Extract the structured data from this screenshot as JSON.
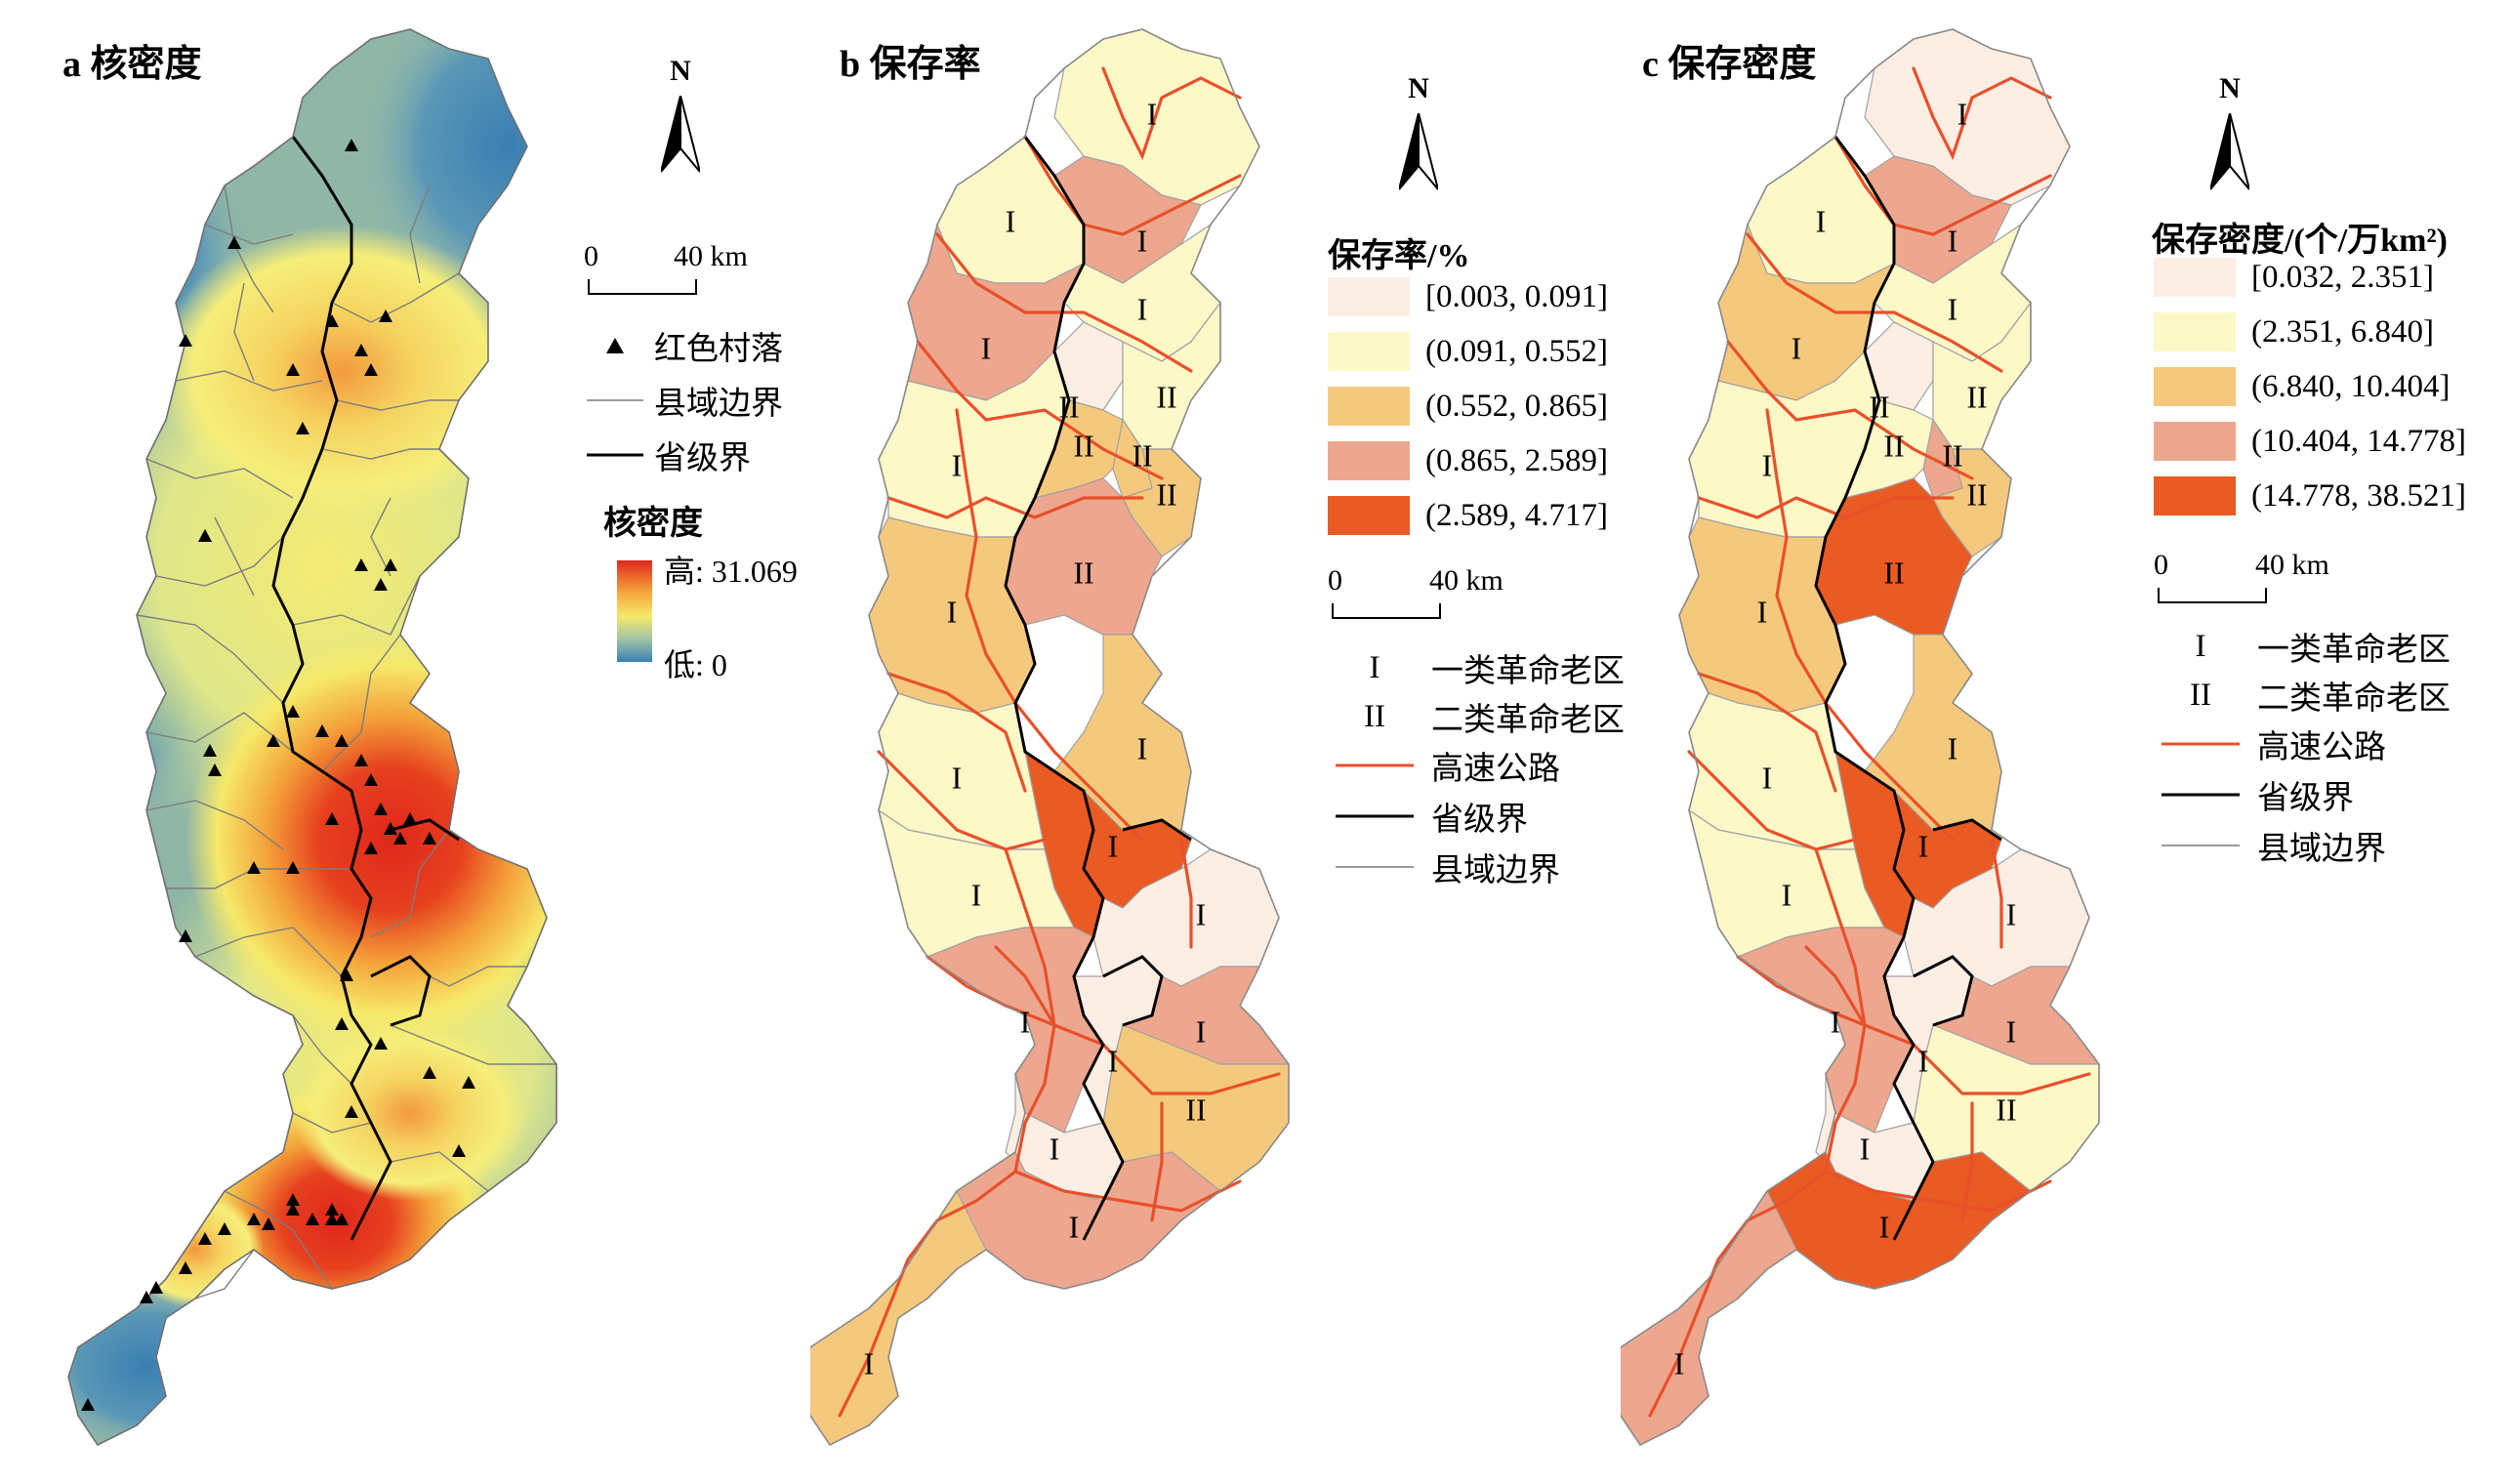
{
  "colors": {
    "class1": "#fdeee4",
    "class2": "#fdf8c8",
    "class3": "#f5c97d",
    "class4": "#eea78f",
    "class5": "#ea5a23",
    "highway": "#e8502a",
    "province_border": "#000000",
    "county_border": "#9a9a9a",
    "kde_high": "#e0271c",
    "kde_mid": "#f6e96a",
    "kde_low": "#3c82b4"
  },
  "panel_a": {
    "title": "a 核密度",
    "north_label": "N",
    "scale": {
      "zero": "0",
      "distance": "40 km"
    },
    "legend": {
      "village": "红色村落",
      "county_boundary": "县域边界",
      "province_boundary": "省级界",
      "kde_title": "核密度",
      "kde_high": "高: 31.069",
      "kde_low": "低: 0"
    }
  },
  "panel_b": {
    "title": "b 保存率",
    "north_label": "N",
    "legend_title": "保存率/%",
    "classes": [
      "[0.003, 0.091]",
      "(0.091, 0.552]",
      "(0.552, 0.865]",
      "(0.865, 2.589]",
      "(2.589, 4.717]"
    ],
    "scale": {
      "zero": "0",
      "distance": "40 km"
    },
    "symbols": {
      "type1_symbol": "I",
      "type1_label": "一类革命老区",
      "type2_symbol": "II",
      "type2_label": "二类革命老区",
      "highway": "高速公路",
      "province_boundary": "省级界",
      "county_boundary": "县域边界"
    }
  },
  "panel_c": {
    "title": "c 保存密度",
    "north_label": "N",
    "legend_title": "保存密度/(个/万km²)",
    "classes": [
      "[0.032, 2.351]",
      "(2.351, 6.840]",
      "(6.840, 10.404]",
      "(10.404, 14.778]",
      "(14.778, 38.521]"
    ],
    "scale": {
      "zero": "0",
      "distance": "40 km"
    },
    "symbols": {
      "type1_symbol": "I",
      "type1_label": "一类革命老区",
      "type2_symbol": "II",
      "type2_label": "二类革命老区",
      "highway": "高速公路",
      "province_boundary": "省级界",
      "county_boundary": "县域边界"
    }
  },
  "region_labels": [
    {
      "id": "r1",
      "text": "I"
    },
    {
      "id": "r2",
      "text": "I"
    },
    {
      "id": "r3",
      "text": "I"
    },
    {
      "id": "r4",
      "text": "I"
    },
    {
      "id": "r5",
      "text": "I"
    },
    {
      "id": "r6",
      "text": "II"
    },
    {
      "id": "r7",
      "text": "II"
    },
    {
      "id": "r8",
      "text": "II"
    },
    {
      "id": "r9",
      "text": "II"
    },
    {
      "id": "r10",
      "text": "II"
    },
    {
      "id": "r11",
      "text": "I"
    },
    {
      "id": "r12",
      "text": "I"
    },
    {
      "id": "r13",
      "text": "II"
    },
    {
      "id": "r14",
      "text": "I"
    },
    {
      "id": "r15",
      "text": "I"
    },
    {
      "id": "r16",
      "text": "I"
    },
    {
      "id": "r17",
      "text": "I"
    },
    {
      "id": "r18",
      "text": "I"
    },
    {
      "id": "r19",
      "text": "I"
    },
    {
      "id": "r20",
      "text": "I"
    },
    {
      "id": "r21",
      "text": "I"
    },
    {
      "id": "r22",
      "text": "I"
    },
    {
      "id": "r23",
      "text": "II"
    },
    {
      "id": "r24",
      "text": "I"
    },
    {
      "id": "r25",
      "text": "I"
    }
  ],
  "panel_b_region_classes": [
    "class2",
    "class2",
    "class4",
    "class2",
    "class4",
    "class1",
    "class2",
    "class3",
    "class3",
    "class3",
    "class2",
    "class3",
    "class4",
    "class3",
    "class5",
    "class2",
    "class2",
    "class4",
    "class1",
    "class1",
    "class4",
    "class1",
    "class3",
    "class4",
    "class3"
  ],
  "panel_c_region_classes": [
    "class1",
    "class2",
    "class4",
    "class2",
    "class3",
    "class1",
    "class2",
    "class2",
    "class4",
    "class3",
    "class2",
    "class3",
    "class5",
    "class3",
    "class5",
    "class2",
    "class2",
    "class4",
    "class1",
    "class1",
    "class4",
    "class1",
    "class2",
    "class5",
    "class4"
  ]
}
